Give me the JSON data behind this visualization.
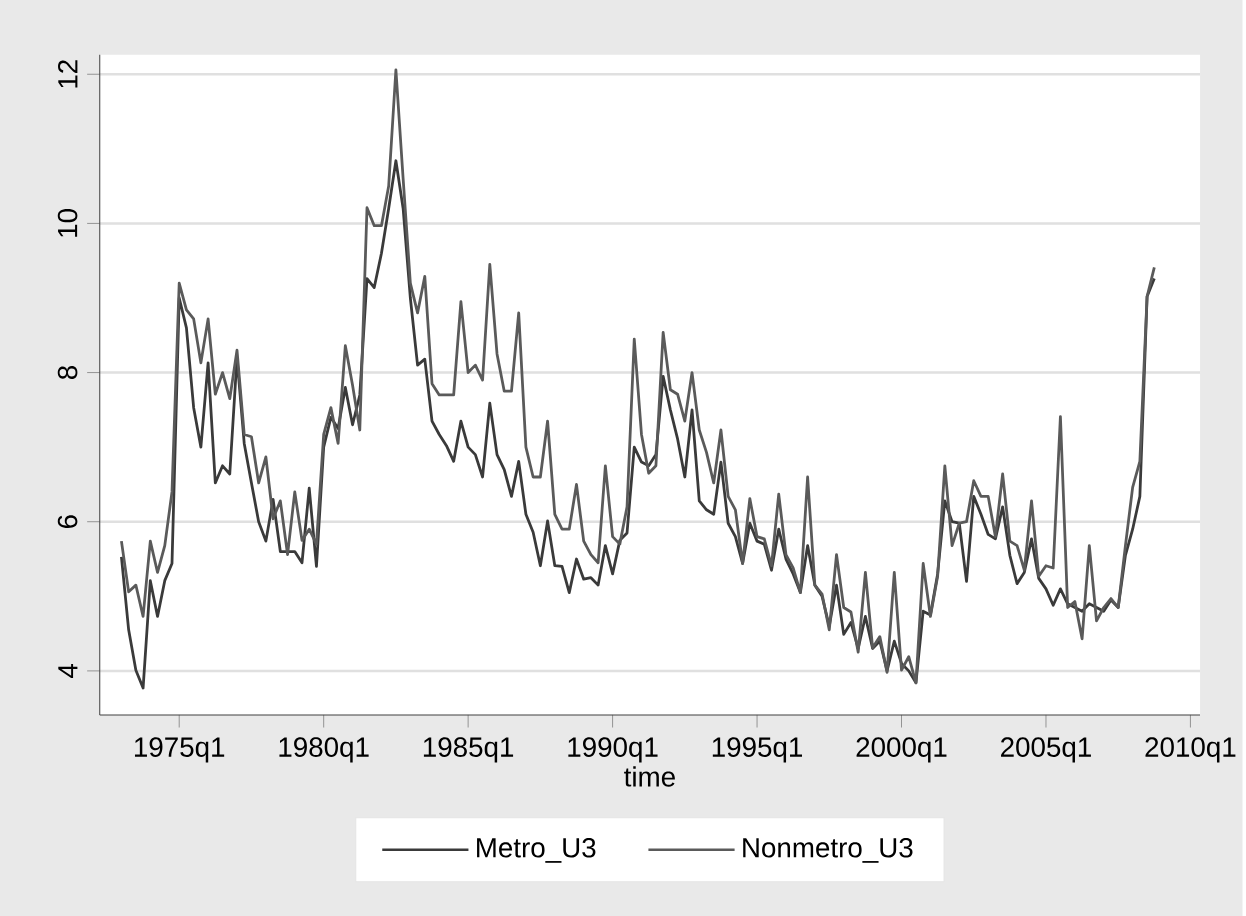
{
  "chart_data": {
    "type": "line",
    "xlabel": "time",
    "x": [
      "1973-01",
      "1973-04",
      "1973-07",
      "1973-10",
      "1974-01",
      "1974-04",
      "1974-07",
      "1974-10",
      "1975-01",
      "1975-04",
      "1975-07",
      "1975-10",
      "1976-01",
      "1976-04",
      "1976-07",
      "1976-10",
      "1977-01",
      "1977-04",
      "1977-07",
      "1977-10",
      "1978-01",
      "1978-04",
      "1978-07",
      "1978-10",
      "1979-01",
      "1979-04",
      "1979-07",
      "1979-10",
      "1980-01",
      "1980-04",
      "1980-07",
      "1980-10",
      "1981-01",
      "1981-04",
      "1981-07",
      "1981-10",
      "1982-01",
      "1982-04",
      "1982-07",
      "1982-10",
      "1983-01",
      "1983-04",
      "1983-07",
      "1983-10",
      "1984-01",
      "1984-04",
      "1984-07",
      "1984-10",
      "1985-01",
      "1985-04",
      "1985-07",
      "1985-10",
      "1986-01",
      "1986-04",
      "1986-07",
      "1986-10",
      "1987-01",
      "1987-04",
      "1987-07",
      "1987-10",
      "1988-01",
      "1988-04",
      "1988-07",
      "1988-10",
      "1989-01",
      "1989-04",
      "1989-07",
      "1989-10",
      "1990-01",
      "1990-04",
      "1990-07",
      "1990-10",
      "1991-01",
      "1991-04",
      "1991-07",
      "1991-10",
      "1992-01",
      "1992-04",
      "1992-07",
      "1992-10",
      "1993-01",
      "1993-04",
      "1993-07",
      "1993-10",
      "1994-01",
      "1994-04",
      "1994-07",
      "1994-10",
      "1995-01",
      "1995-04",
      "1995-07",
      "1995-10",
      "1996-01",
      "1996-04",
      "1996-07",
      "1996-10",
      "1997-01",
      "1997-04",
      "1997-07",
      "1997-10",
      "1998-01",
      "1998-04",
      "1998-07",
      "1998-10",
      "1999-01",
      "1999-04",
      "1999-07",
      "1999-10",
      "2000-01",
      "2000-04",
      "2000-07",
      "2000-10",
      "2001-01",
      "2001-04",
      "2001-07",
      "2001-10",
      "2002-01",
      "2002-04",
      "2002-07",
      "2002-10",
      "2003-01",
      "2003-04",
      "2003-07",
      "2003-10",
      "2004-01",
      "2004-04",
      "2004-07",
      "2004-10",
      "2005-01",
      "2005-04",
      "2005-07",
      "2005-10",
      "2006-01",
      "2006-04",
      "2006-07",
      "2006-10",
      "2007-01",
      "2007-04",
      "2007-07",
      "2007-10",
      "2008-01",
      "2008-04",
      "2008-07",
      "2008-10"
    ],
    "series": [
      {
        "name": "Metro_U3",
        "color": "#3a3a3a",
        "values": [
          5.53,
          4.55,
          4.01,
          3.77,
          5.21,
          4.73,
          5.21,
          5.44,
          9.0,
          8.6,
          7.53,
          7.0,
          8.13,
          6.52,
          6.75,
          6.64,
          8.2,
          7.05,
          6.52,
          6.0,
          5.74,
          6.3,
          5.6,
          5.6,
          5.6,
          5.45,
          6.45,
          5.4,
          7.0,
          7.4,
          7.25,
          7.8,
          7.3,
          7.7,
          9.26,
          9.14,
          9.6,
          10.2,
          10.84,
          10.2,
          9.0,
          8.1,
          8.18,
          7.35,
          7.17,
          7.02,
          6.81,
          7.35,
          7.0,
          6.9,
          6.6,
          7.59,
          6.9,
          6.7,
          6.34,
          6.81,
          6.1,
          5.86,
          5.41,
          6.01,
          5.41,
          5.4,
          5.05,
          5.5,
          5.23,
          5.25,
          5.15,
          5.68,
          5.3,
          5.75,
          5.85,
          7.0,
          6.8,
          6.75,
          6.9,
          7.95,
          7.5,
          7.11,
          6.6,
          7.5,
          6.28,
          6.16,
          6.1,
          6.8,
          5.98,
          5.8,
          5.44,
          5.98,
          5.74,
          5.7,
          5.35,
          5.9,
          5.5,
          5.3,
          5.05,
          5.68,
          5.15,
          5.0,
          4.6,
          5.15,
          4.49,
          4.65,
          4.3,
          4.73,
          4.3,
          4.4,
          4.0,
          4.4,
          4.1,
          4.0,
          3.84,
          4.8,
          4.75,
          5.3,
          6.28,
          6.0,
          5.98,
          5.2,
          6.34,
          6.1,
          5.83,
          5.77,
          6.2,
          5.55,
          5.17,
          5.32,
          5.77,
          5.24,
          5.1,
          4.88,
          5.1,
          4.9,
          4.85,
          4.8,
          4.9,
          4.85,
          4.8,
          4.95,
          4.85,
          5.55,
          5.9,
          6.34,
          9.02,
          9.26
        ]
      },
      {
        "name": "Nonmetro_U3",
        "color": "#5a5a5a",
        "values": [
          5.74,
          5.06,
          5.15,
          4.73,
          5.74,
          5.32,
          5.68,
          6.4,
          9.2,
          8.84,
          8.72,
          8.13,
          8.72,
          7.71,
          8.0,
          7.65,
          8.3,
          7.17,
          7.14,
          6.52,
          6.87,
          6.04,
          6.28,
          5.56,
          6.4,
          5.75,
          5.9,
          5.7,
          7.17,
          7.53,
          7.05,
          8.36,
          7.83,
          7.23,
          10.21,
          9.97,
          9.97,
          10.5,
          12.06,
          10.6,
          9.2,
          8.8,
          9.29,
          7.85,
          7.7,
          7.7,
          7.7,
          8.95,
          8.0,
          8.1,
          7.9,
          9.45,
          8.25,
          7.75,
          7.75,
          8.8,
          7.0,
          6.6,
          6.6,
          7.35,
          6.1,
          5.9,
          5.9,
          6.5,
          5.74,
          5.56,
          5.45,
          6.75,
          5.8,
          5.7,
          6.2,
          8.45,
          7.17,
          6.65,
          6.75,
          8.54,
          7.77,
          7.71,
          7.35,
          8.0,
          7.23,
          6.93,
          6.52,
          7.23,
          6.34,
          6.16,
          5.44,
          6.31,
          5.8,
          5.77,
          5.41,
          6.37,
          5.56,
          5.38,
          5.05,
          6.6,
          5.15,
          5.03,
          4.55,
          5.56,
          4.85,
          4.79,
          4.25,
          5.32,
          4.31,
          4.46,
          3.98,
          5.32,
          4.01,
          4.19,
          3.84,
          5.44,
          4.73,
          5.27,
          6.75,
          5.68,
          5.98,
          6.0,
          6.55,
          6.34,
          6.34,
          5.8,
          6.64,
          5.74,
          5.68,
          5.35,
          6.28,
          5.27,
          5.41,
          5.38,
          7.41,
          4.85,
          4.93,
          4.43,
          5.68,
          4.67,
          4.85,
          4.97,
          4.85,
          5.68,
          6.46,
          6.81,
          9.02,
          9.41
        ]
      }
    ],
    "xlim": [
      "1972-04",
      "2010-05"
    ],
    "xticks": [
      {
        "value": "1975-01",
        "label": "1975q1"
      },
      {
        "value": "1980-01",
        "label": "1980q1"
      },
      {
        "value": "1985-01",
        "label": "1985q1"
      },
      {
        "value": "1990-01",
        "label": "1990q1"
      },
      {
        "value": "1995-01",
        "label": "1995q1"
      },
      {
        "value": "2000-01",
        "label": "2000q1"
      },
      {
        "value": "2005-01",
        "label": "2005q1"
      },
      {
        "value": "2010-01",
        "label": "2010q1"
      }
    ],
    "ylim": [
      3.41,
      12.26
    ],
    "yticks": [
      4,
      6,
      8,
      10,
      12
    ],
    "grid": "y",
    "legend": "bottom",
    "marker": "none",
    "line_style": "solid"
  }
}
